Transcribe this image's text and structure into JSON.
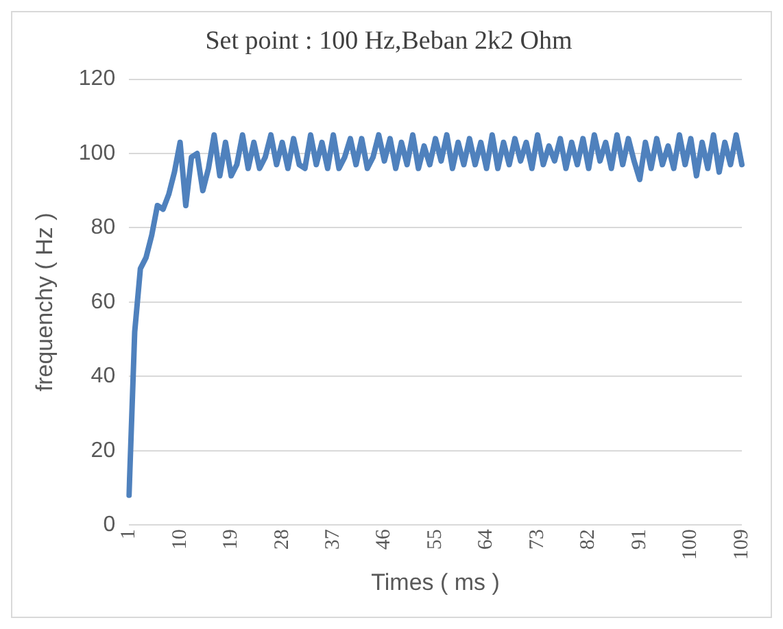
{
  "chart_data": {
    "type": "line",
    "title": "Set point : 100 Hz,Beban 2k2 Ohm",
    "xlabel": "Times ( ms )",
    "ylabel": "frequenchy ( Hz )",
    "categories": [
      "1",
      null,
      null,
      null,
      null,
      null,
      null,
      null,
      null,
      "10",
      null,
      null,
      null,
      null,
      null,
      null,
      null,
      null,
      "19",
      null,
      null,
      null,
      null,
      null,
      null,
      null,
      null,
      "28",
      null,
      null,
      null,
      null,
      null,
      null,
      null,
      null,
      "37",
      null,
      null,
      null,
      null,
      null,
      null,
      null,
      null,
      "46",
      null,
      null,
      null,
      null,
      null,
      null,
      null,
      null,
      "55",
      null,
      null,
      null,
      null,
      null,
      null,
      null,
      null,
      "64",
      null,
      null,
      null,
      null,
      null,
      null,
      null,
      null,
      "73",
      null,
      null,
      null,
      null,
      null,
      null,
      null,
      null,
      "82",
      null,
      null,
      null,
      null,
      null,
      null,
      null,
      null,
      "91",
      null,
      null,
      null,
      null,
      null,
      null,
      null,
      null,
      "100",
      null,
      null,
      null,
      null,
      null,
      null,
      null,
      null,
      "109"
    ],
    "series": [
      {
        "color": "#4f81bd",
        "values": [
          8,
          52,
          69,
          72,
          78,
          86,
          85,
          89,
          95,
          103,
          86,
          99,
          100,
          90,
          96,
          105,
          94,
          103,
          94,
          97,
          105,
          96,
          103,
          96,
          99,
          105,
          97,
          103,
          96,
          104,
          97,
          96,
          105,
          97,
          103,
          96,
          105,
          96,
          99,
          104,
          97,
          104,
          96,
          99,
          105,
          98,
          104,
          96,
          103,
          97,
          105,
          96,
          102,
          97,
          104,
          98,
          105,
          96,
          103,
          97,
          104,
          97,
          103,
          96,
          105,
          96,
          103,
          97,
          104,
          98,
          103,
          96,
          105,
          97,
          102,
          98,
          104,
          96,
          103,
          97,
          104,
          96,
          105,
          98,
          103,
          96,
          105,
          97,
          104,
          98,
          93,
          103,
          96,
          104,
          97,
          102,
          96,
          105,
          97,
          104,
          94,
          103,
          96,
          105,
          95,
          103,
          97,
          105,
          97
        ]
      }
    ],
    "ylim": [
      0,
      120
    ],
    "yticks": [
      0,
      20,
      40,
      60,
      80,
      100,
      120
    ],
    "grid": "y",
    "legend": false,
    "marker": "none",
    "line_style": "solid"
  }
}
